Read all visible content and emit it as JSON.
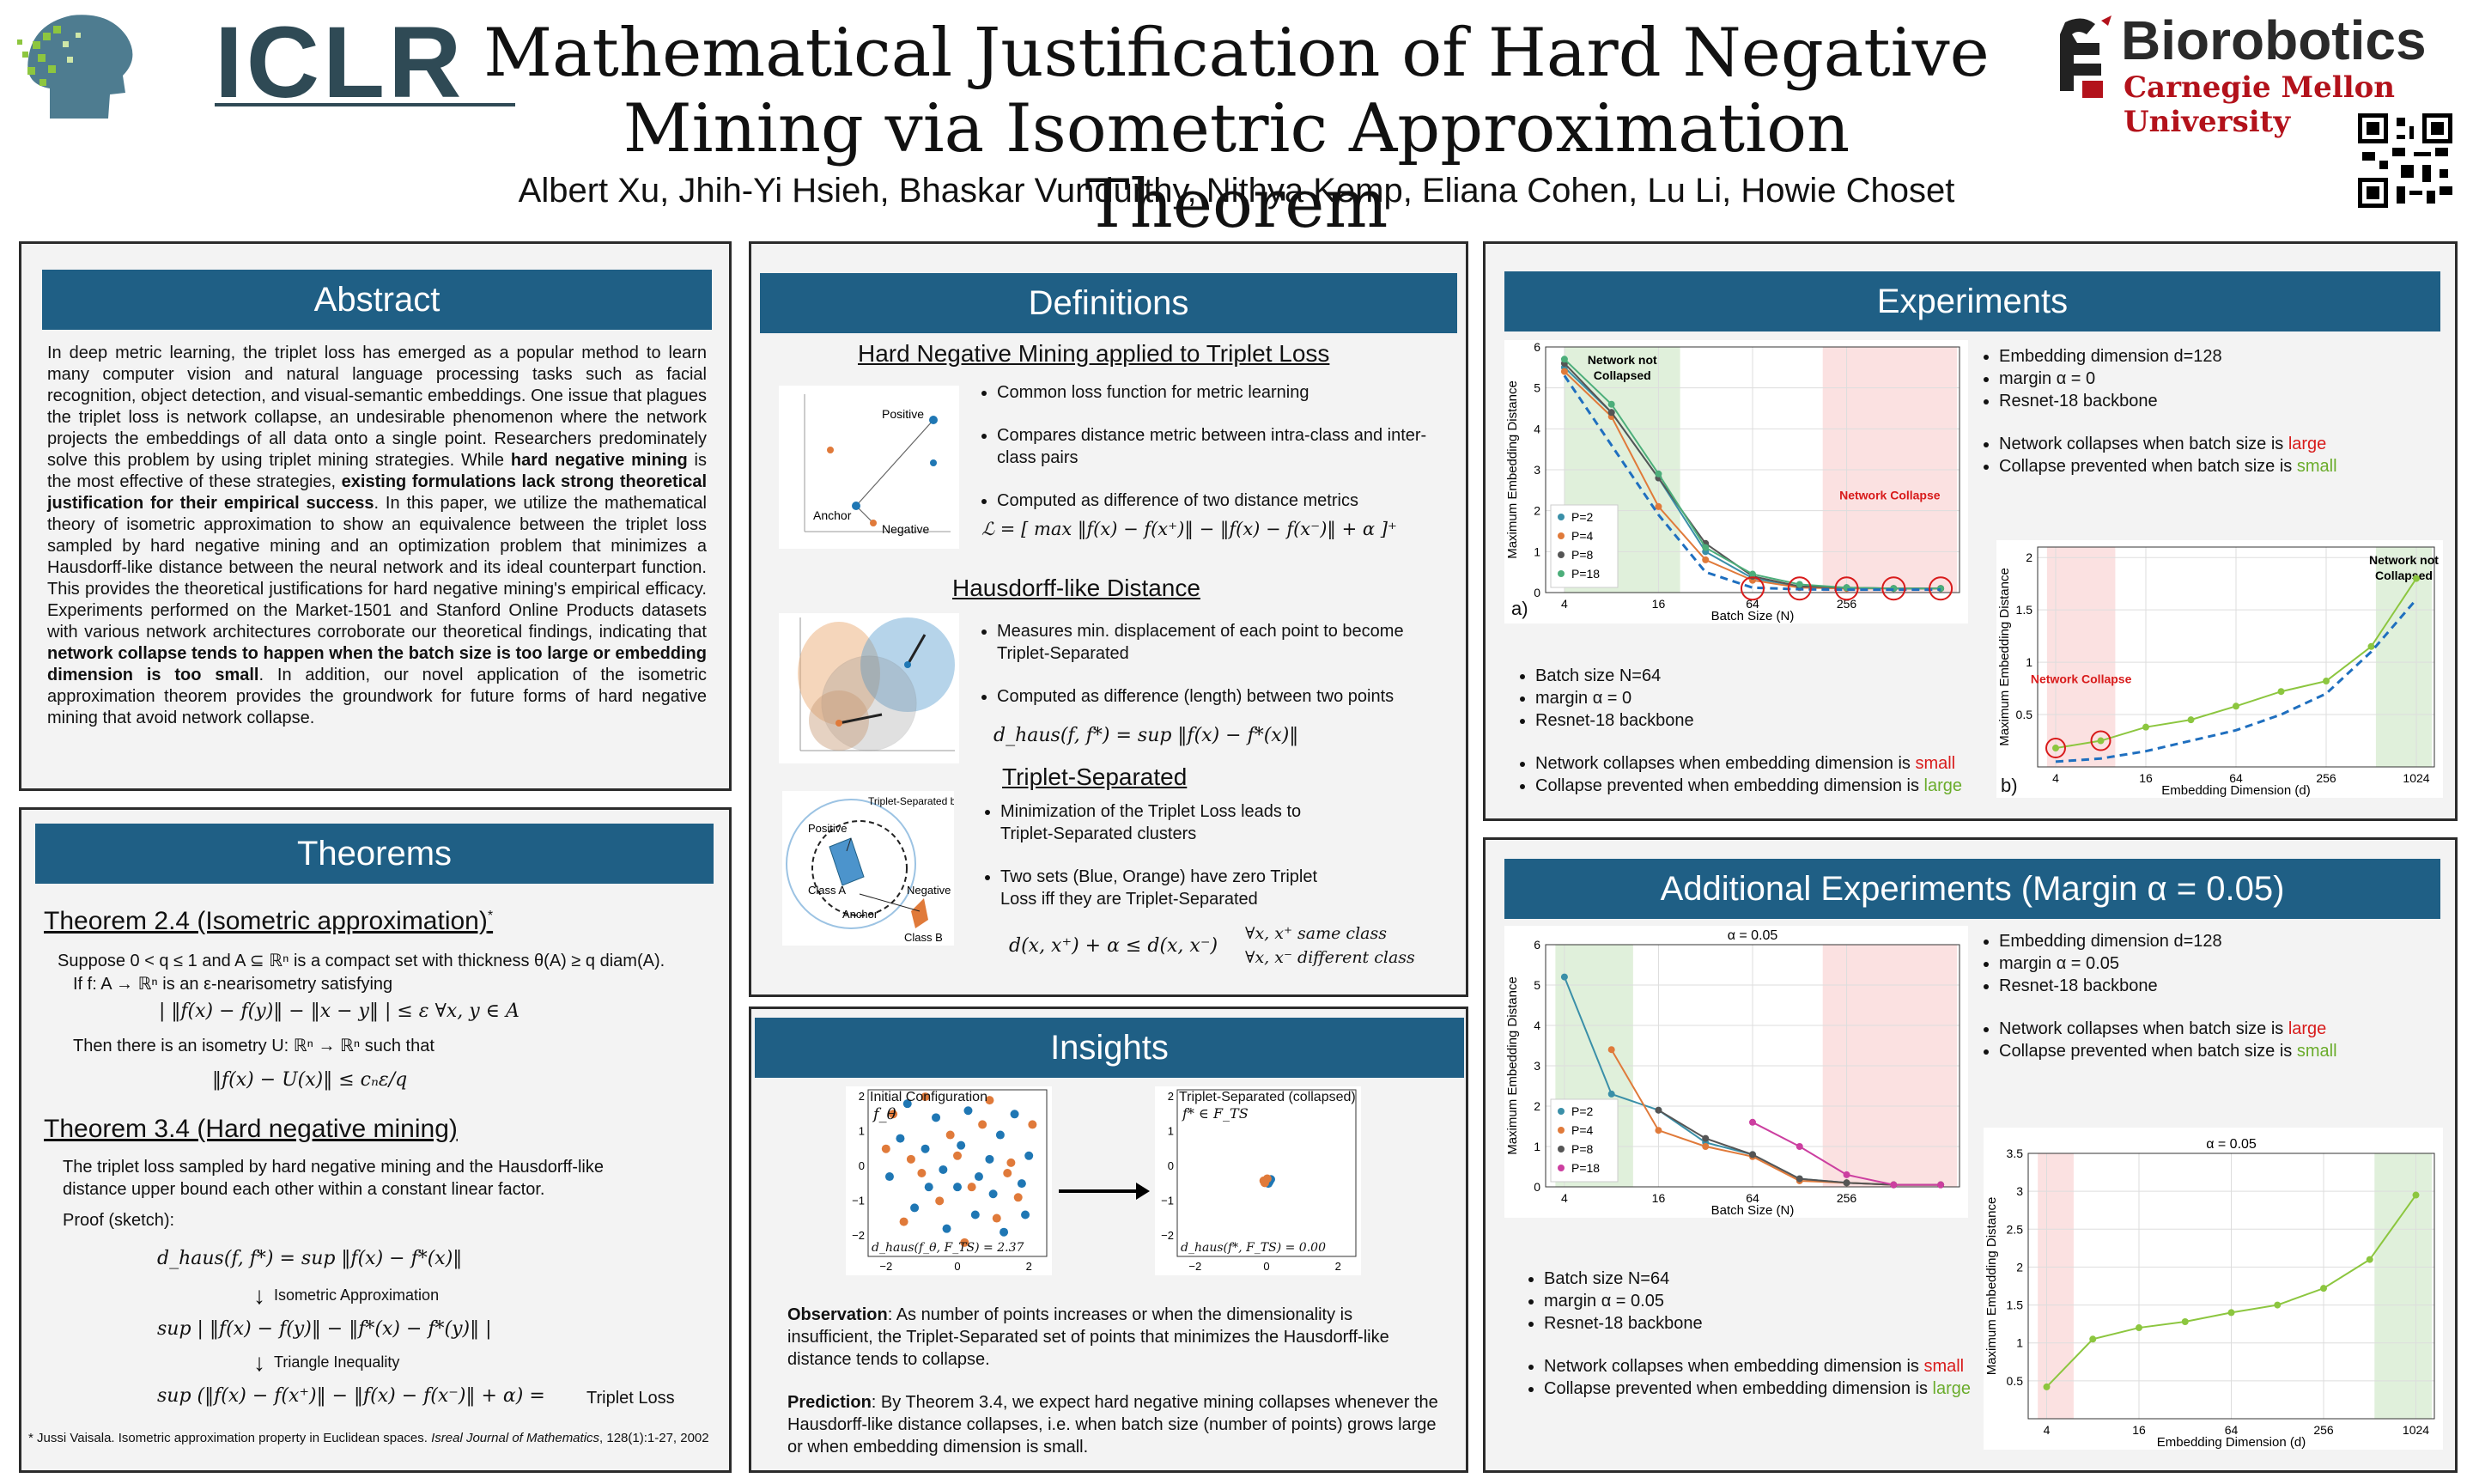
{
  "header": {
    "conf": "ICLR",
    "title_line1": "Mathematical Justification of Hard Negative",
    "title_line2": "Mining via Isometric Approximation Theorem",
    "authors": "Albert Xu, Jhih-Yi Hsieh, Bhaskar Vundurthy, Nithya Kemp, Eliana Cohen, Lu Li, Howie Choset",
    "lab": "Biorobotics",
    "university": "Carnegie Mellon University"
  },
  "abstract": {
    "heading": "Abstract",
    "p1": "In deep metric learning, the triplet loss has emerged as a popular method to learn many computer vision and natural language processing tasks such as facial recognition, object detection, and visual-semantic embeddings. One issue that plagues the triplet loss is network collapse, an undesirable phenomenon where the network projects the embeddings of all data onto a single point. Researchers predominately solve this problem by using triplet mining strategies. While ",
    "b1": "hard negative mining",
    "p2": " is the most effective of these strategies, ",
    "b2": "existing formulations lack strong theoretical justification for their empirical success",
    "p3": ". In this paper, we utilize the mathematical theory of isometric approximation to show an equivalence between the triplet loss sampled by hard negative mining and an optimization problem that minimizes a Hausdorff-like distance between the neural network and its ideal counterpart function. This provides the theoretical justifications for hard negative mining's empirical efficacy. Experiments performed on the Market-1501 and Stanford Online Products datasets with various network architectures corroborate our theoretical findings, indicating that ",
    "b3": "network collapse tends to happen when the batch size is too large or embedding dimension is too small",
    "p4": ". In addition, our novel application of the isometric approximation theorem provides the groundwork for future forms of hard negative mining that avoid network collapse."
  },
  "theorems": {
    "heading": "Theorems",
    "t1_title": "Theorem 2.4 (Isometric approximation)",
    "t1_sup": "*",
    "t1_l1": "Suppose 0 < q ≤ 1 and A ⊆ ℝⁿ is a compact set with thickness θ(A) ≥ q diam(A).",
    "t1_l2": "If f: A → ℝⁿ is an ε-nearisometry satisfying",
    "t1_eq1": "| ‖f(x) − f(y)‖ − ‖x − y‖ | ≤ ε    ∀x, y ∈ A",
    "t1_l3": "Then there is an isometry U: ℝⁿ → ℝⁿ such that",
    "t1_eq2": "‖f(x) − U(x)‖ ≤ cₙε/q",
    "t2_title": "Theorem 3.4 (Hard negative mining)",
    "t2_l1": "The triplet loss sampled by hard negative mining and the Hausdorff-like distance upper bound each other within a constant linear factor.",
    "t2_proof": "Proof (sketch):",
    "t2_eq1": "d_haus(f, f*) = sup ‖f(x) − f*(x)‖",
    "t2_step1": "Isometric Approximation",
    "t2_eq2": "sup | ‖f(x) − f(y)‖ − ‖f*(x) − f*(y)‖ |",
    "t2_step2": "Triangle Inequality",
    "t2_eq3": "sup (‖f(x) − f(x⁺)‖ − ‖f(x) − f(x⁻)‖ + α) =",
    "t2_eq3_tail": "Triplet Loss",
    "footnote1": "* Jussi Vaisala. Isometric approximation property in Euclidean spaces. ",
    "footnote_journal": "Isreal Journal of Mathematics",
    "footnote2": ", 128(1):1-27, 2002"
  },
  "definitions": {
    "heading": "Definitions",
    "s1_title": "Hard Negative Mining applied to Triplet Loss",
    "s1_bullets": [
      "Common loss function for metric learning",
      "Compares distance metric between intra-class and inter-class pairs",
      "Computed as difference of two distance metrics"
    ],
    "s1_eq": "ℒ = [ max ‖f(x) − f(x⁺)‖ − ‖f(x) − f(x⁻)‖ + α ]⁺",
    "s1_fig_labels": {
      "positive": "Positive",
      "anchor": "Anchor",
      "negative": "Negative"
    },
    "s2_title": "Hausdorff-like Distance",
    "s2_bullets": [
      "Measures min. displacement of each point to become Triplet-Separated",
      "Computed as difference (length) between two points"
    ],
    "s2_eq": "d_haus(f, f*) = sup ‖f(x) − f*(x)‖",
    "s3_title": "Triplet-Separated",
    "s3_bullets": [
      "Minimization of the Triplet Loss leads to Triplet-Separated clusters",
      "Two sets (Blue, Orange) have zero Triplet Loss iff they are Triplet-Separated"
    ],
    "s3_eq": "d(x, x⁺) + α ≤ d(x, x⁻)",
    "s3_eq_r1": "∀x, x⁺ same class",
    "s3_eq_r2": "∀x, x⁻ different class",
    "s3_fig_labels": {
      "boundary": "Triplet-Separated boundary for Class A",
      "positive": "Positive",
      "classA": "Class A",
      "anchor": "Anchor",
      "negative": "Negative",
      "classB": "Class B"
    }
  },
  "insights": {
    "heading": "Insights",
    "fig1_title": "Initial Configuration",
    "fig1_sub": "f_θ",
    "fig1_foot": "d_haus(f_θ, F_TS) = 2.37",
    "fig2_title": "Triplet-Separated (collapsed)",
    "fig2_sub": "f* ∈ F_TS",
    "fig2_foot": "d_haus(f*, F_TS) = 0.00",
    "obs_label": "Observation",
    "obs_text": ": As number of points increases or when the dimensionality is insufficient, the Triplet-Separated set of points that minimizes the Hausdorff-like distance tends to collapse.",
    "pred_label": "Prediction",
    "pred_text": ": By Theorem 3.4, we expect hard negative mining collapses whenever the Hausdorff-like distance collapses, i.e. when batch size (number of points) grows large or when embedding dimension is small."
  },
  "experiments": {
    "heading": "Experiments",
    "right_bullets_a": [
      "Embedding dimension d=128",
      "margin α = 0",
      "Resnet-18 backbone"
    ],
    "right_bullets_b_pre": [
      "Network collapses when batch size is ",
      "Collapse prevented when batch size is "
    ],
    "right_bullets_b_word": [
      "large",
      "small"
    ],
    "left_bullets_a": [
      "Batch size N=64",
      "margin α = 0",
      "Resnet-18 backbone"
    ],
    "left_bullets_b_pre": [
      "Network collapses when embedding dimension is ",
      "Collapse prevented when embedding dimension is "
    ],
    "left_bullets_b_word": [
      "small",
      "large"
    ],
    "panel_a": "a)",
    "panel_b": "b)"
  },
  "additional": {
    "heading": "Additional Experiments (Margin α = 0.05)",
    "right_bullets_a": [
      "Embedding dimension d=128",
      "margin α = 0.05",
      "Resnet-18 backbone"
    ],
    "right_bullets_b_pre": [
      "Network collapses when batch size is ",
      "Collapse prevented when batch size is "
    ],
    "right_bullets_b_word": [
      "large",
      "small"
    ],
    "left_bullets_a": [
      "Batch size N=64",
      "margin α = 0.05",
      "Resnet-18 backbone"
    ],
    "left_bullets_b_pre": [
      "Network collapses when embedding dimension is ",
      "Collapse prevented when embedding dimension is "
    ],
    "left_bullets_b_word": [
      "small",
      "large"
    ]
  },
  "chart_data": [
    {
      "type": "line",
      "id": "exp_a",
      "xlabel": "Batch Size (N)",
      "ylabel": "Maximum Embedding Distance",
      "xscale": "log2",
      "x": [
        4,
        8,
        16,
        32,
        64,
        128,
        256,
        512,
        1024
      ],
      "xticks": [
        4,
        16,
        64,
        256
      ],
      "ylim": [
        0,
        6
      ],
      "yticks": [
        0,
        1,
        2,
        3,
        4,
        5,
        6
      ],
      "series": [
        {
          "name": "P=2",
          "color": "#3a8fa8",
          "values": [
            5.5,
            4.4,
            2.8,
            1.0,
            0.35,
            0.15,
            0.12,
            0.1,
            0.1
          ]
        },
        {
          "name": "P=4",
          "color": "#e07a3a",
          "values": [
            5.4,
            4.3,
            2.1,
            0.8,
            0.3,
            0.12,
            0.1,
            0.1,
            0.1
          ]
        },
        {
          "name": "P=8",
          "color": "#555555",
          "values": [
            5.6,
            4.4,
            2.8,
            1.2,
            0.4,
            0.15,
            0.12,
            0.1,
            0.1
          ]
        },
        {
          "name": "P=18",
          "color": "#4cae7a",
          "values": [
            5.7,
            4.6,
            2.9,
            1.1,
            0.45,
            0.2,
            0.12,
            0.1,
            0.1
          ]
        },
        {
          "name": "",
          "color": "#1f6fbf",
          "dashed": true,
          "values": [
            5.3,
            3.6,
            1.9,
            0.5,
            0.12,
            0.08,
            0.07,
            0.07,
            0.07
          ]
        }
      ],
      "regions": [
        {
          "from": 4,
          "to": 22,
          "color": "green",
          "label": "Network not Collapsed"
        },
        {
          "from": 180,
          "to": 1300,
          "color": "red",
          "label": "Network Collapse"
        }
      ]
    },
    {
      "type": "line",
      "id": "exp_b",
      "xlabel": "Embedding Dimension (d)",
      "ylabel": "Maximum Embedding Distance",
      "xscale": "log2",
      "x": [
        4,
        8,
        16,
        32,
        64,
        128,
        256,
        512,
        1024
      ],
      "xticks": [
        4,
        16,
        64,
        256,
        1024
      ],
      "ylim": [
        0,
        2.1
      ],
      "yticks": [
        0.5,
        1.0,
        1.5,
        2.0
      ],
      "series": [
        {
          "name": "",
          "color": "#8cc63f",
          "values": [
            0.18,
            0.25,
            0.38,
            0.45,
            0.58,
            0.72,
            0.82,
            1.15,
            1.8
          ]
        },
        {
          "name": "",
          "color": "#1f6fbf",
          "dashed": true,
          "values": [
            0.05,
            0.08,
            0.15,
            0.25,
            0.35,
            0.5,
            0.7,
            1.1,
            1.6
          ]
        }
      ],
      "regions": [
        {
          "from": 3.5,
          "to": 10,
          "color": "red",
          "label": "Network Collapse"
        },
        {
          "from": 550,
          "to": 1300,
          "color": "green",
          "label": "Network not Collapsed"
        }
      ]
    },
    {
      "type": "line",
      "id": "add_a",
      "title": "α = 0.05",
      "xlabel": "Batch Size (N)",
      "ylabel": "Maximum Embedding Distance",
      "xscale": "log2",
      "x": [
        4,
        8,
        16,
        32,
        64,
        128,
        256,
        512,
        1024
      ],
      "xticks": [
        4,
        16,
        64,
        256
      ],
      "ylim": [
        0,
        6
      ],
      "yticks": [
        0,
        1,
        2,
        3,
        4,
        5,
        6
      ],
      "series": [
        {
          "name": "P=2",
          "color": "#3a8fa8",
          "values": [
            5.2,
            2.3,
            1.9,
            1.1,
            0.8,
            0.2,
            0.1,
            0.05,
            0.05
          ]
        },
        {
          "name": "P=4",
          "color": "#e07a3a",
          "values": [
            null,
            3.4,
            1.4,
            1.0,
            0.75,
            0.15,
            0.1,
            0.05,
            0.05
          ]
        },
        {
          "name": "P=8",
          "color": "#555555",
          "values": [
            null,
            null,
            1.9,
            1.2,
            0.8,
            0.2,
            0.1,
            0.05,
            0.05
          ]
        },
        {
          "name": "P=18",
          "color": "#cc3fa0",
          "values": [
            null,
            null,
            null,
            null,
            1.6,
            1.0,
            0.3,
            0.05,
            0.05
          ]
        }
      ],
      "regions": [
        {
          "from": 3.5,
          "to": 11,
          "color": "green"
        },
        {
          "from": 180,
          "to": 1300,
          "color": "red"
        }
      ]
    },
    {
      "type": "line",
      "id": "add_b",
      "title": "α = 0.05",
      "xlabel": "Embedding Dimension (d)",
      "ylabel": "Maximum Embedding Distance",
      "xscale": "log2",
      "x": [
        4,
        8,
        16,
        32,
        64,
        128,
        256,
        512,
        1024
      ],
      "xticks": [
        4,
        16,
        64,
        256,
        1024
      ],
      "ylim": [
        0,
        3.5
      ],
      "yticks": [
        0.5,
        1.0,
        1.5,
        2.0,
        2.5,
        3.0,
        3.5
      ],
      "series": [
        {
          "name": "",
          "color": "#8cc63f",
          "values": [
            0.42,
            1.05,
            1.2,
            1.28,
            1.4,
            1.5,
            1.72,
            2.1,
            2.95
          ]
        }
      ],
      "regions": [
        {
          "from": 3.5,
          "to": 6,
          "color": "red"
        },
        {
          "from": 550,
          "to": 1300,
          "color": "green"
        }
      ]
    },
    {
      "type": "scatter",
      "id": "insight_init",
      "xlim": [
        -2.5,
        2.5
      ],
      "ylim": [
        -2.6,
        2.2
      ],
      "xticks": [
        -2,
        0,
        2
      ],
      "yticks": [
        -2,
        -1,
        0,
        1,
        2
      ],
      "series": [
        {
          "name": "",
          "color": "#1f77b4",
          "points": [
            [
              -1.6,
              0.8
            ],
            [
              -0.9,
              0.5
            ],
            [
              -0.4,
              -0.1
            ],
            [
              0.1,
              0.6
            ],
            [
              0.6,
              -0.3
            ],
            [
              1.2,
              0.9
            ],
            [
              1.8,
              -0.5
            ],
            [
              -1.2,
              -1.2
            ],
            [
              -0.3,
              -1.8
            ],
            [
              0.5,
              -1.4
            ],
            [
              1.3,
              -1.9
            ],
            [
              2.0,
              0.3
            ],
            [
              -1.9,
              -0.3
            ],
            [
              0.9,
              0.2
            ],
            [
              -0.6,
              1.4
            ],
            [
              0.3,
              1.6
            ],
            [
              1.6,
              1.5
            ],
            [
              -1.4,
              1.8
            ],
            [
              0.0,
              -0.6
            ],
            [
              1.0,
              -0.8
            ],
            [
              -0.8,
              -0.6
            ],
            [
              1.9,
              -1.4
            ]
          ]
        },
        {
          "name": "",
          "color": "#e07a3a",
          "points": [
            [
              -1.8,
              1.5
            ],
            [
              -1.0,
              -0.2
            ],
            [
              -0.2,
              0.9
            ],
            [
              0.7,
              1.2
            ],
            [
              1.5,
              0.1
            ],
            [
              -1.5,
              -1.6
            ],
            [
              -0.5,
              -1.0
            ],
            [
              0.4,
              -0.6
            ],
            [
              1.1,
              -1.5
            ],
            [
              2.1,
              1.2
            ],
            [
              -2.0,
              0.5
            ],
            [
              0.2,
              -2.2
            ],
            [
              1.7,
              -0.9
            ],
            [
              -0.9,
              2.0
            ],
            [
              0.9,
              1.9
            ],
            [
              -1.3,
              0.2
            ],
            [
              0.0,
              0.3
            ],
            [
              1.4,
              -0.2
            ]
          ]
        }
      ]
    },
    {
      "type": "scatter",
      "id": "insight_collapsed",
      "xlim": [
        -2.5,
        2.5
      ],
      "ylim": [
        -2.6,
        2.2
      ],
      "xticks": [
        -2,
        0,
        2
      ],
      "yticks": [
        -2,
        -1,
        0,
        1,
        2
      ],
      "series": [
        {
          "name": "",
          "color": "#1f77b4",
          "points": [
            [
              0.0,
              -0.4
            ],
            [
              0.08,
              -0.45
            ],
            [
              0.12,
              -0.38
            ],
            [
              0.05,
              -0.5
            ]
          ]
        },
        {
          "name": "",
          "color": "#e07a3a",
          "points": [
            [
              -0.08,
              -0.42
            ],
            [
              -0.05,
              -0.48
            ],
            [
              0.02,
              -0.36
            ]
          ]
        }
      ]
    }
  ]
}
